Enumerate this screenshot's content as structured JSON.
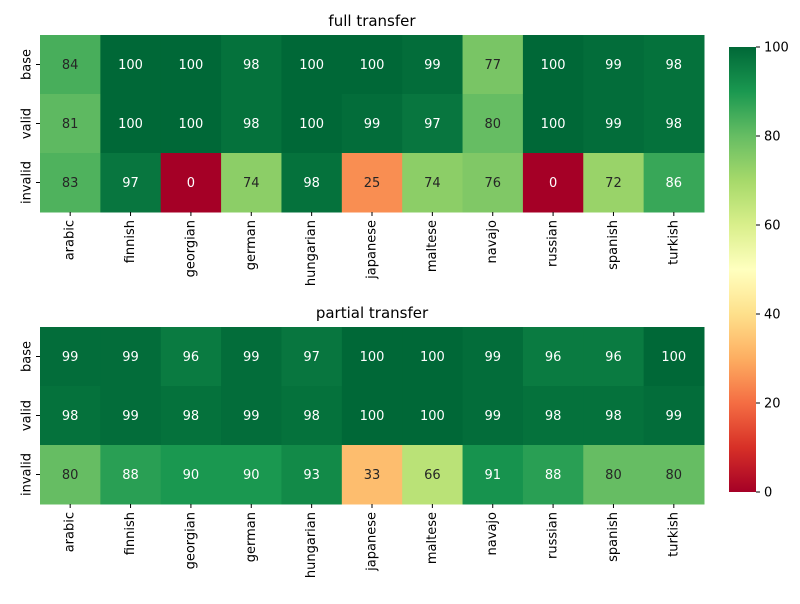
{
  "chart_data": [
    {
      "type": "heatmap",
      "title": "full transfer",
      "rows": [
        "base",
        "valid",
        "invalid"
      ],
      "columns": [
        "arabic",
        "finnish",
        "georgian",
        "german",
        "hungarian",
        "japanese",
        "maltese",
        "navajo",
        "russian",
        "spanish",
        "turkish"
      ],
      "values": [
        [
          84,
          100,
          100,
          98,
          100,
          100,
          99,
          77,
          100,
          99,
          98
        ],
        [
          81,
          100,
          100,
          98,
          100,
          99,
          97,
          80,
          100,
          99,
          98
        ],
        [
          83,
          97,
          0,
          74,
          98,
          25,
          74,
          76,
          0,
          72,
          86
        ]
      ],
      "vmin": 0,
      "vmax": 100
    },
    {
      "type": "heatmap",
      "title": "partial transfer",
      "rows": [
        "base",
        "valid",
        "invalid"
      ],
      "columns": [
        "arabic",
        "finnish",
        "georgian",
        "german",
        "hungarian",
        "japanese",
        "maltese",
        "navajo",
        "russian",
        "spanish",
        "turkish"
      ],
      "values": [
        [
          99,
          99,
          96,
          99,
          97,
          100,
          100,
          99,
          96,
          96,
          100
        ],
        [
          98,
          99,
          98,
          99,
          98,
          100,
          100,
          99,
          98,
          98,
          99
        ],
        [
          80,
          88,
          90,
          90,
          93,
          33,
          66,
          91,
          88,
          80,
          80
        ]
      ],
      "vmin": 0,
      "vmax": 100
    }
  ],
  "colorbar": {
    "colormap": "RdYlGn",
    "min": 0,
    "max": 100,
    "ticks": [
      "0",
      "20",
      "40",
      "60",
      "80",
      "100"
    ]
  }
}
